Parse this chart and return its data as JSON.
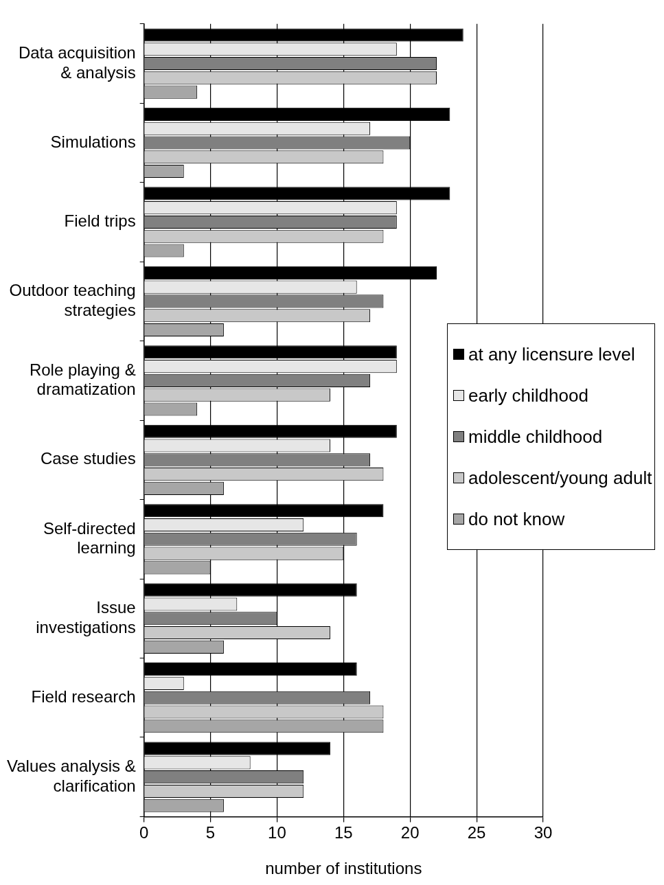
{
  "chart_data": {
    "type": "bar",
    "orientation": "horizontal",
    "xlabel": "number of institutions",
    "categories": [
      "Data acquisition & analysis",
      "Simulations",
      "Field trips",
      "Outdoor teaching strategies",
      "Role playing & dramatization",
      "Case studies",
      "Self-directed learning",
      "Issue investigations",
      "Field research",
      "Values analysis & clarification"
    ],
    "series": [
      {
        "name": "at any licensure level",
        "color": "#000000",
        "values": [
          24,
          23,
          23,
          22,
          19,
          19,
          18,
          16,
          16,
          14
        ]
      },
      {
        "name": "early childhood",
        "color": "#e6e6e6",
        "values": [
          19,
          17,
          19,
          16,
          19,
          14,
          12,
          7,
          3,
          8
        ]
      },
      {
        "name": "middle childhood",
        "color": "#808080",
        "values": [
          22,
          20,
          19,
          18,
          17,
          17,
          16,
          10,
          17,
          12
        ]
      },
      {
        "name": "adolescent/young adult",
        "color": "#c8c8c8",
        "values": [
          22,
          18,
          18,
          17,
          14,
          18,
          15,
          14,
          18,
          12
        ]
      },
      {
        "name": "do not know",
        "color": "#a6a6a6",
        "values": [
          4,
          3,
          3,
          6,
          4,
          6,
          5,
          6,
          18,
          6
        ]
      }
    ],
    "xlim": [
      0,
      30
    ],
    "xticks": [
      0,
      5,
      10,
      15,
      20,
      25,
      30
    ],
    "grid": "x",
    "legend": "right"
  }
}
